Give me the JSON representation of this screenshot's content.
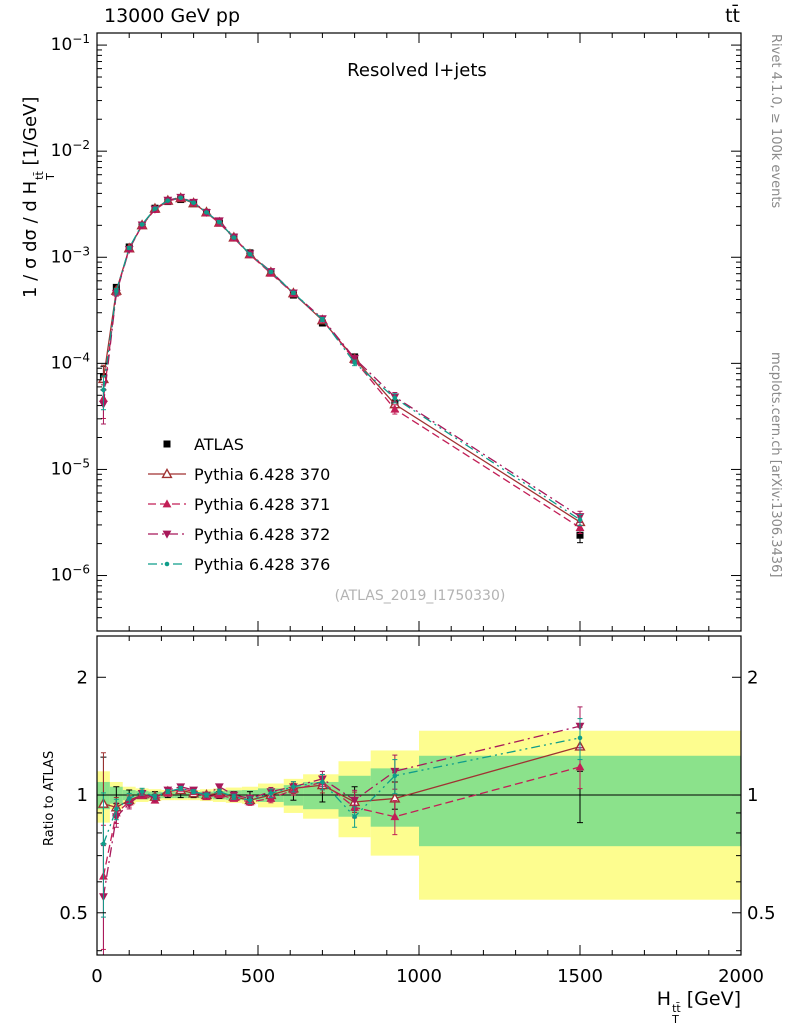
{
  "header": {
    "left": "13000 GeV pp",
    "right": "tt̄"
  },
  "main_panel": {
    "subtitle": "Resolved l+jets",
    "watermark": "(ATLAS_2019_I1750330)",
    "y_label": {
      "pre": "1 / σ dσ / d H",
      "sub": "T",
      "sup": "tt̄",
      "post": " [1/GeV]"
    }
  },
  "ratio_panel": {
    "y_label": "Ratio to ATLAS"
  },
  "x_axis": {
    "label": {
      "pre": "H",
      "sub": "T",
      "sup": "tt̄",
      "post": " [GeV]"
    }
  },
  "side_notes": {
    "top": "Rivet 4.1.0, ≥ 100k events",
    "bottom": "mcplots.cern.ch [arXiv:1306.3436]"
  },
  "colors": {
    "atlas": "#000000",
    "p370": "#a03232",
    "p371": "#c21e56",
    "p372": "#a8185a",
    "p376": "#0f9d8a",
    "band_yellow": "#fdfd8f",
    "band_green": "#8be28b"
  },
  "chart_data": {
    "type": "line",
    "title": "Resolved l+jets",
    "xlabel": "H_T^ttbar [GeV]",
    "ylabel_main": "1/sigma dsigma/dH_T^ttbar [1/GeV]",
    "ylabel_ratio": "Ratio to ATLAS",
    "x": [
      20,
      60,
      100,
      140,
      180,
      220,
      260,
      300,
      340,
      380,
      425,
      475,
      540,
      610,
      700,
      800,
      925,
      1500
    ],
    "bin_edges": [
      0,
      40,
      80,
      120,
      160,
      200,
      240,
      280,
      320,
      360,
      400,
      450,
      500,
      580,
      640,
      750,
      850,
      1000,
      2000
    ],
    "atlas": {
      "name": "ATLAS",
      "y": [
        7.5e-05,
        0.00052,
        0.00125,
        0.002,
        0.0029,
        0.00335,
        0.0035,
        0.0032,
        0.00265,
        0.0021,
        0.00155,
        0.0011,
        0.00072,
        0.00044,
        0.00024,
        0.000115,
        4.2e-05,
        2.4e-06
      ],
      "rel_err": [
        0.25,
        0.05,
        0.03,
        0.02,
        0.02,
        0.015,
        0.015,
        0.015,
        0.015,
        0.02,
        0.02,
        0.02,
        0.025,
        0.03,
        0.04,
        0.05,
        0.08,
        0.15
      ]
    },
    "series": [
      {
        "name": "Pythia 6.428 370",
        "key": "p370",
        "marker": "triangle-open",
        "dash": "solid",
        "ratio": [
          0.95,
          0.93,
          0.97,
          1.0,
          0.99,
          1.02,
          1.03,
          1.01,
          1.0,
          1.01,
          0.99,
          0.97,
          1.0,
          1.04,
          1.06,
          0.96,
          0.98,
          1.33
        ],
        "rel_err": [
          0.35,
          0.06,
          0.03,
          0.02,
          0.015,
          0.012,
          0.012,
          0.012,
          0.012,
          0.015,
          0.015,
          0.02,
          0.025,
          0.03,
          0.045,
          0.06,
          0.1,
          0.12
        ]
      },
      {
        "name": "Pythia 6.428 371",
        "key": "p371",
        "marker": "triangle-up",
        "dash": "dashed",
        "ratio": [
          0.62,
          0.9,
          0.96,
          1.0,
          0.97,
          1.01,
          1.04,
          1.02,
          0.99,
          1.0,
          0.98,
          0.96,
          0.98,
          1.03,
          1.08,
          0.93,
          0.88,
          1.18
        ],
        "rel_err": [
          0.35,
          0.06,
          0.03,
          0.02,
          0.015,
          0.012,
          0.012,
          0.012,
          0.012,
          0.015,
          0.015,
          0.02,
          0.025,
          0.03,
          0.045,
          0.06,
          0.1,
          0.12
        ]
      },
      {
        "name": "Pythia 6.428 372",
        "key": "p372",
        "marker": "triangle-down",
        "dash": "dashdot",
        "ratio": [
          0.55,
          0.88,
          0.95,
          1.01,
          0.98,
          1.03,
          1.05,
          1.03,
          1.0,
          1.05,
          1.0,
          0.98,
          1.02,
          1.05,
          1.1,
          0.97,
          1.15,
          1.5
        ],
        "rel_err": [
          0.35,
          0.06,
          0.03,
          0.02,
          0.015,
          0.012,
          0.012,
          0.012,
          0.012,
          0.015,
          0.015,
          0.02,
          0.025,
          0.03,
          0.045,
          0.06,
          0.1,
          0.12
        ]
      },
      {
        "name": "Pythia 6.428 376",
        "key": "p376",
        "marker": "circle",
        "dash": "dashdotdot",
        "ratio": [
          0.75,
          0.92,
          0.98,
          1.02,
          0.99,
          1.02,
          1.04,
          1.02,
          1.0,
          1.02,
          0.99,
          0.97,
          1.01,
          1.05,
          1.08,
          0.88,
          1.12,
          1.4
        ],
        "rel_err": [
          0.35,
          0.06,
          0.03,
          0.02,
          0.015,
          0.012,
          0.012,
          0.012,
          0.012,
          0.015,
          0.015,
          0.02,
          0.025,
          0.03,
          0.045,
          0.06,
          0.1,
          0.12
        ]
      }
    ],
    "bands": {
      "yellow_half": [
        0.15,
        0.08,
        0.05,
        0.04,
        0.035,
        0.03,
        0.03,
        0.03,
        0.035,
        0.04,
        0.045,
        0.05,
        0.07,
        0.1,
        0.13,
        0.22,
        0.3,
        0.46
      ],
      "green_half": [
        0.08,
        0.05,
        0.03,
        0.025,
        0.02,
        0.018,
        0.018,
        0.018,
        0.02,
        0.025,
        0.028,
        0.03,
        0.04,
        0.06,
        0.08,
        0.12,
        0.17,
        0.26
      ]
    },
    "axes": {
      "x": {
        "min": 0,
        "max": 2000,
        "major": [
          0,
          500,
          1000,
          1500,
          2000
        ],
        "minor_step": 100
      },
      "y_main": {
        "min": 3e-07,
        "max": 0.13,
        "decades": [
          -1,
          -2,
          -3,
          -4,
          -5,
          -6
        ]
      },
      "y_ratio": {
        "min": 0.39,
        "max": 2.55,
        "labeled": [
          {
            "v": 2,
            "t": "2"
          },
          {
            "v": 1,
            "t": "1"
          },
          {
            "v": 0.5,
            "t": "0.5"
          }
        ],
        "minor": [
          0.4,
          0.6,
          0.7,
          0.8,
          0.9
        ]
      }
    },
    "legend_position": "inside-left-bottom-of-main-panel",
    "grid": false
  }
}
